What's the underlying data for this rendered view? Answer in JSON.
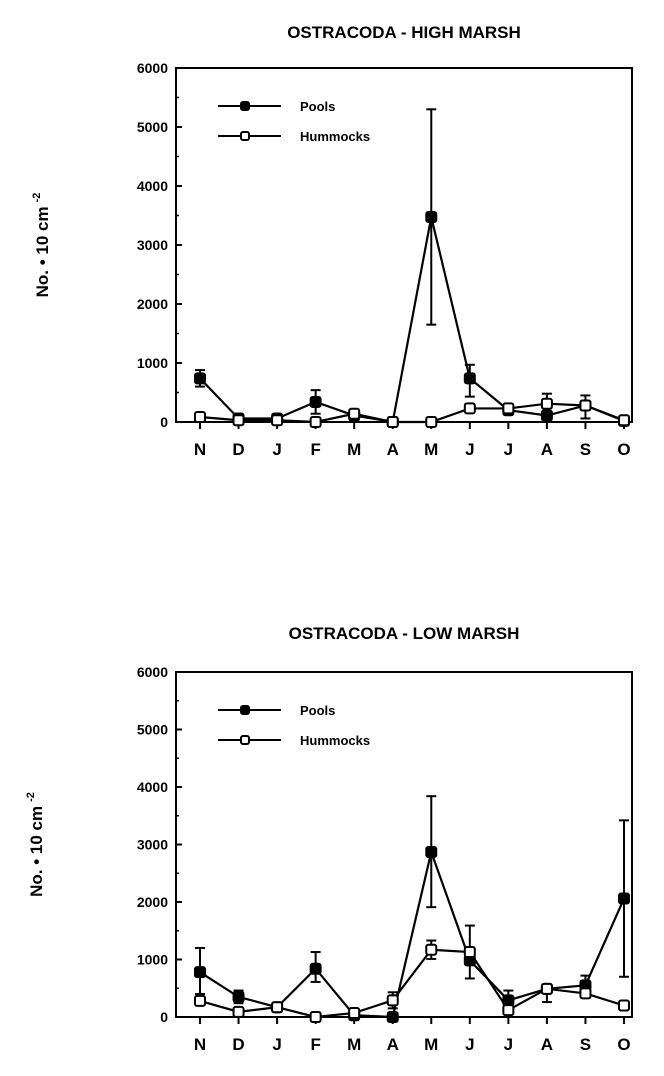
{
  "chart_data": [
    {
      "type": "line",
      "title": "OSTRACODA - HIGH MARSH",
      "xlabel": "",
      "ylabel": "No. • 10 cm",
      "ylabel_sup": "-2",
      "ylim": [
        0,
        6000
      ],
      "yticks": [
        0,
        1000,
        2000,
        3000,
        4000,
        5000,
        6000
      ],
      "categories": [
        "N",
        "D",
        "J",
        "F",
        "M",
        "A",
        "M",
        "J",
        "J",
        "A",
        "S",
        "O"
      ],
      "legend_position": "top-left",
      "series": [
        {
          "name": "Pools",
          "marker": "filled",
          "values": [
            740,
            60,
            60,
            340,
            110,
            0,
            3475,
            740,
            200,
            110,
            280,
            20
          ],
          "err_high": [
            880,
            null,
            null,
            540,
            null,
            null,
            5300,
            970,
            null,
            null,
            null,
            null
          ],
          "err_low": [
            600,
            null,
            null,
            140,
            null,
            null,
            1650,
            430,
            null,
            null,
            null,
            null
          ]
        },
        {
          "name": "Hummocks",
          "marker": "open",
          "values": [
            85,
            30,
            30,
            0,
            140,
            0,
            0,
            230,
            230,
            310,
            280,
            30
          ],
          "err_high": [
            null,
            null,
            null,
            null,
            null,
            null,
            null,
            null,
            null,
            480,
            450,
            null
          ],
          "err_low": [
            null,
            null,
            null,
            null,
            null,
            null,
            null,
            null,
            null,
            140,
            60,
            null
          ]
        }
      ]
    },
    {
      "type": "line",
      "title": "OSTRACODA - LOW MARSH",
      "xlabel": "",
      "ylabel": "No. • 10 cm",
      "ylabel_sup": "-2",
      "ylim": [
        0,
        6000
      ],
      "yticks": [
        0,
        1000,
        2000,
        3000,
        4000,
        5000,
        6000
      ],
      "categories": [
        "N",
        "D",
        "J",
        "F",
        "M",
        "A",
        "M",
        "J",
        "J",
        "A",
        "S",
        "O"
      ],
      "legend_position": "top-left",
      "series": [
        {
          "name": "Pools",
          "marker": "filled",
          "values": [
            780,
            350,
            170,
            840,
            30,
            0,
            2870,
            985,
            290,
            490,
            550,
            2060
          ],
          "err_high": [
            1200,
            460,
            null,
            1130,
            null,
            null,
            3840,
            null,
            460,
            null,
            720,
            3420
          ],
          "err_low": [
            400,
            240,
            null,
            610,
            null,
            null,
            1910,
            670,
            120,
            null,
            380,
            700
          ]
        },
        {
          "name": "Hummocks",
          "marker": "open",
          "values": [
            280,
            90,
            170,
            0,
            70,
            290,
            1170,
            1130,
            120,
            490,
            410,
            200
          ],
          "err_high": [
            null,
            null,
            null,
            null,
            null,
            430,
            1330,
            1590,
            null,
            null,
            null,
            null
          ],
          "err_low": [
            null,
            null,
            null,
            null,
            null,
            150,
            1010,
            null,
            null,
            260,
            null,
            null
          ]
        }
      ]
    }
  ]
}
